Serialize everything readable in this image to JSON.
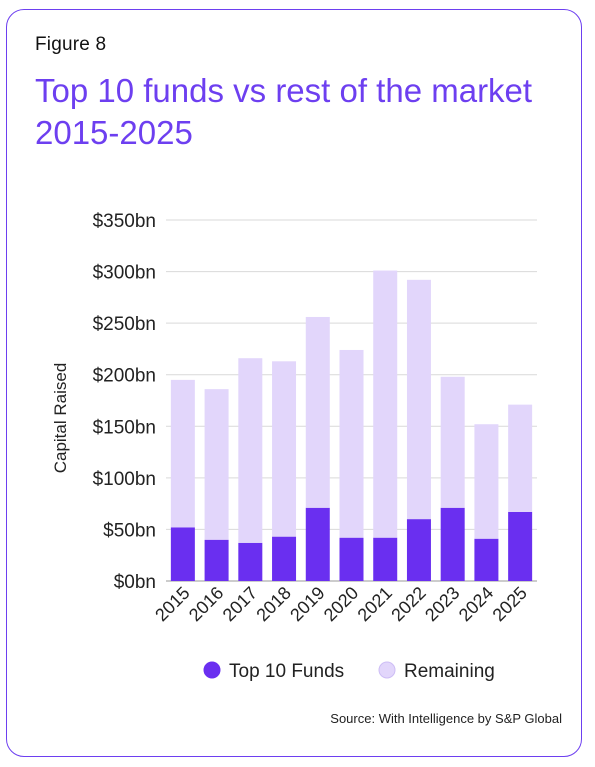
{
  "figure_label": "Figure 8",
  "title": "Top 10 funds vs rest of the market 2015-2025",
  "source": "Source: With Intelligence by S&P Global",
  "colors": {
    "accent": "#6d3ff0",
    "top10": "#6a2ff0",
    "remaining": "#e2d6fb",
    "grid": "#d9d9d9"
  },
  "chart_data": {
    "type": "bar",
    "stacked": true,
    "categories": [
      "2015",
      "2016",
      "2017",
      "2018",
      "2019",
      "2020",
      "2021",
      "2022",
      "2023",
      "2024",
      "2025"
    ],
    "series": [
      {
        "name": "Top 10 Funds",
        "values": [
          52,
          40,
          37,
          43,
          71,
          42,
          42,
          60,
          71,
          41,
          67
        ]
      },
      {
        "name": "Remaining",
        "values": [
          143,
          146,
          179,
          170,
          185,
          182,
          259,
          232,
          127,
          111,
          104
        ]
      }
    ],
    "ylabel": "Capital Raised",
    "xlabel": "",
    "ylim": [
      0,
      350
    ],
    "yticks": [
      0,
      50,
      100,
      150,
      200,
      250,
      300,
      350
    ],
    "ytick_labels": [
      "$0bn",
      "$50bn",
      "$100bn",
      "$150bn",
      "$200bn",
      "$250bn",
      "$300bn",
      "$350bn"
    ],
    "grid": true,
    "legend_position": "bottom"
  }
}
